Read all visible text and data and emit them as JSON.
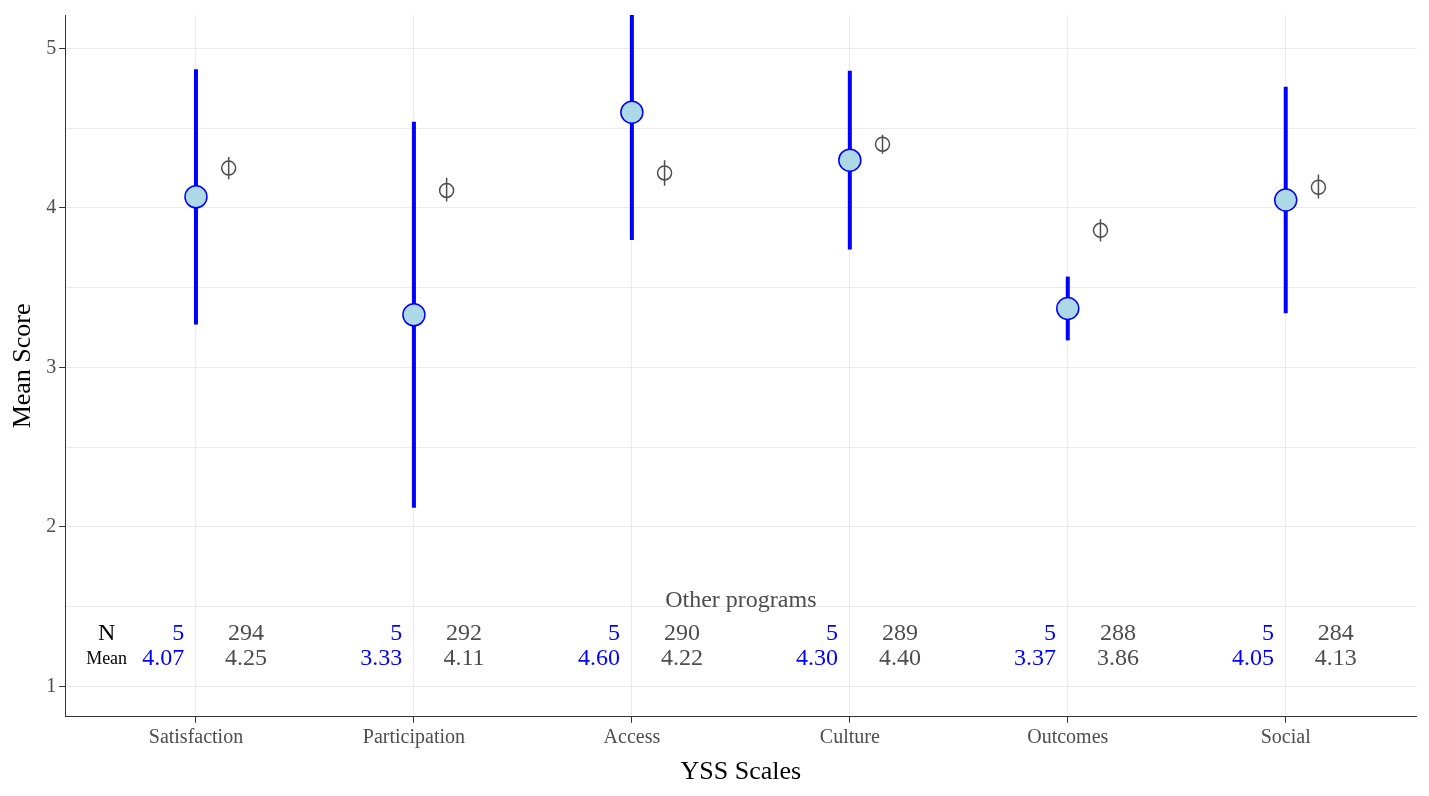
{
  "chart_data": {
    "type": "scatter",
    "xlabel": "YSS Scales",
    "ylabel": "Mean Score",
    "categories": [
      "Satisfaction",
      "Participation",
      "Access",
      "Culture",
      "Outcomes",
      "Social"
    ],
    "ylim": [
      0.81,
      5.21
    ],
    "yticks": [
      1,
      {
        "value": 1.5,
        "label": null
      },
      2,
      {
        "value": 2.5,
        "label": null
      },
      3,
      {
        "value": 3.5,
        "label": null
      },
      4,
      {
        "value": 4.5,
        "label": null
      },
      5
    ],
    "grid": true,
    "legend": "bottom",
    "marker": "circle",
    "series": [
      {
        "color": "#0000ff",
        "values": [
          4.07,
          3.33,
          4.6,
          4.3,
          3.37,
          4.05
        ],
        "errors": [
          [
            3.27,
            4.87
          ],
          [
            2.12,
            4.54
          ],
          [
            3.8,
            5.21
          ],
          [
            3.74,
            4.86
          ],
          [
            3.17,
            3.57
          ],
          [
            3.34,
            4.76
          ]
        ]
      },
      {
        "name": "Other programs",
        "color": "#4d4d4d",
        "values": [
          4.25,
          4.11,
          4.22,
          4.4,
          3.86,
          4.13
        ],
        "errors": [
          [
            4.18,
            4.32
          ],
          [
            4.04,
            4.19
          ],
          [
            4.14,
            4.3
          ],
          [
            4.34,
            4.46
          ],
          [
            3.79,
            3.93
          ],
          [
            4.06,
            4.21
          ]
        ]
      }
    ],
    "annotations": [
      "N",
      "Mean",
      "5",
      "294",
      "5",
      "292",
      "5",
      "290",
      "5",
      "289",
      "5",
      "288",
      "5",
      "284",
      "4.07",
      "4.25",
      "3.33",
      "4.11",
      "4.60",
      "4.22",
      "4.30",
      "4.40",
      "3.37",
      "3.86",
      "4.05",
      "4.13"
    ]
  }
}
